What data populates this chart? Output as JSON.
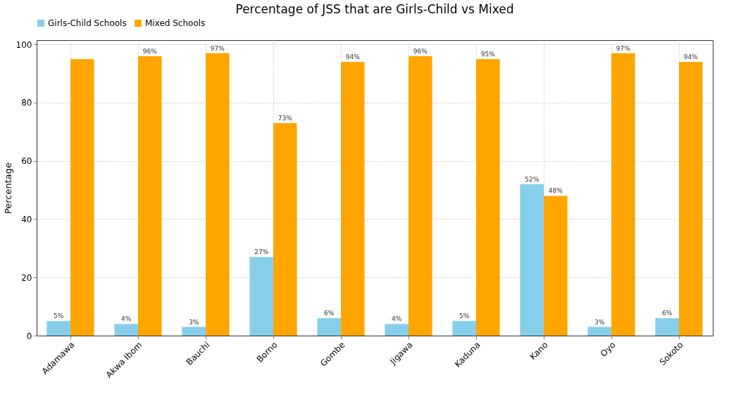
{
  "chart_data": {
    "type": "bar",
    "title": "Percentage of JSS that are Girls-Child vs Mixed",
    "ylabel": "Percentage",
    "categories": [
      "Adamawa",
      "Akwa Ibom",
      "Bauchi",
      "Borno",
      "Gombe",
      "Jigawa",
      "Kaduna",
      "Kano",
      "Oyo",
      "Sokoto"
    ],
    "series": [
      {
        "name": "Girls-Child Schools",
        "color": "#87ceeb",
        "values": [
          5,
          4,
          3,
          27,
          6,
          4,
          5,
          52,
          3,
          6
        ],
        "value_labels": [
          "5%",
          "4%",
          "3%",
          "27%",
          "6%",
          "4%",
          "5%",
          "52%",
          "3%",
          "6%"
        ]
      },
      {
        "name": "Mixed Schools",
        "color": "#ffa500",
        "values": [
          95,
          96,
          97,
          73,
          94,
          96,
          95,
          48,
          97,
          94
        ],
        "value_labels": [
          null,
          "96%",
          "97%",
          "73%",
          "94%",
          "96%",
          "95%",
          "48%",
          "97%",
          "94%"
        ]
      }
    ],
    "ylim": [
      0,
      101.5
    ],
    "yticks": [
      0,
      20,
      40,
      60,
      80,
      100
    ],
    "grid": true,
    "legend": "top"
  }
}
